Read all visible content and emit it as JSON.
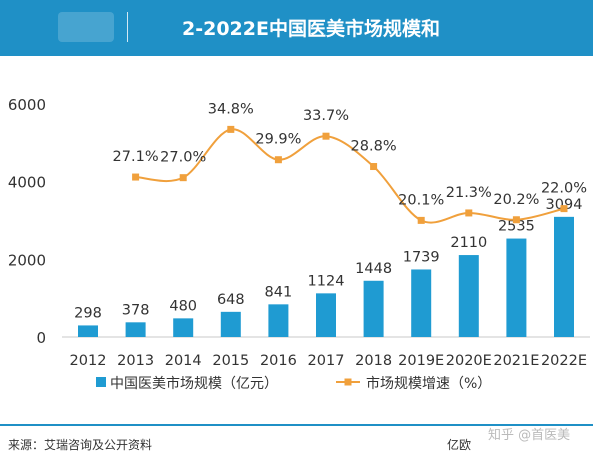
{
  "header": {
    "title": "2-2022E中国医美市场规模和"
  },
  "footer": {
    "source": "来源：艾瑞咨询及公开资料",
    "unit_note": "亿欧",
    "watermark": "知乎 @首医美"
  },
  "colors": {
    "banner": "#1f90c6",
    "bar": "#1f9bd2",
    "line": "#f0a03c"
  },
  "chart_data": {
    "type": "bar",
    "categories": [
      "2012",
      "2013",
      "2014",
      "2015",
      "2016",
      "2017",
      "2018",
      "2019E",
      "2020E",
      "2021E",
      "2022E"
    ],
    "series": [
      {
        "name": "中国医美市场规模（亿元）",
        "type": "bar",
        "axis": "left",
        "values": [
          298,
          378,
          480,
          648,
          841,
          1124,
          1448,
          1739,
          2110,
          2535,
          3094
        ],
        "labels": [
          "298",
          "378",
          "480",
          "648",
          "841",
          "1124",
          "1448",
          "1739",
          "2110",
          "2535",
          "3094"
        ]
      },
      {
        "name": "市场规模增速（%）",
        "type": "line",
        "values": [
          null,
          27.1,
          27.0,
          34.8,
          29.9,
          33.7,
          28.8,
          20.1,
          21.3,
          20.2,
          22.0
        ],
        "labels": [
          null,
          "27.1%",
          "27.0%",
          "34.8%",
          "29.9%",
          "33.7%",
          "28.8%",
          "20.1%",
          "21.3%",
          "20.2%",
          "22.0%"
        ]
      }
    ],
    "y_ticks": [
      "0",
      "2000",
      "4000",
      "6000"
    ],
    "ylim": [
      0,
      6000
    ],
    "legend_position": "bottom"
  }
}
